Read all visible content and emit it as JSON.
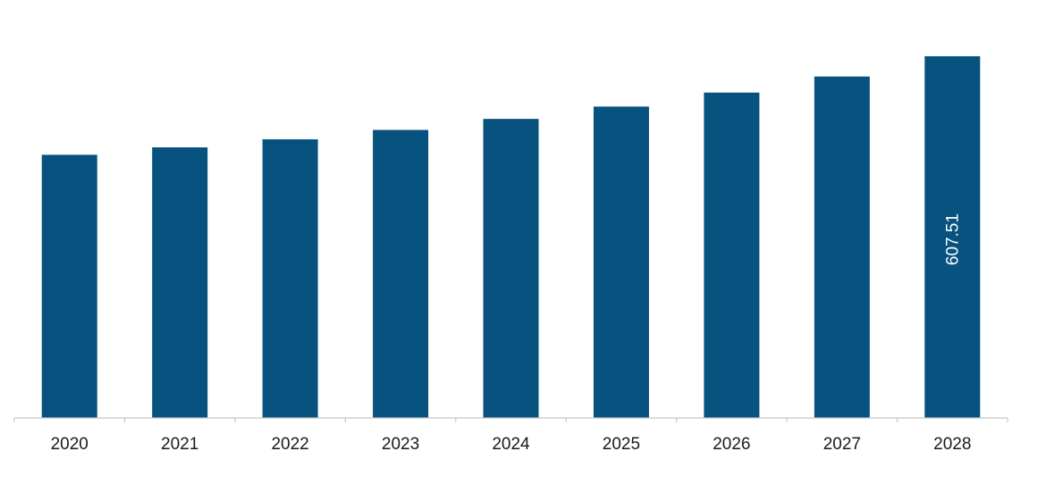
{
  "chart_data": {
    "type": "bar",
    "categories": [
      "2020",
      "2021",
      "2022",
      "2023",
      "2024",
      "2025",
      "2026",
      "2027",
      "2028"
    ],
    "series": [
      {
        "values": [
          442.0,
          454.5,
          468.0,
          483.8,
          502.3,
          523.0,
          546.5,
          573.5,
          607.51
        ],
        "data_labels": [
          "",
          "",
          "",
          "",
          "",
          "",
          "",
          "",
          "607.51"
        ]
      }
    ],
    "ylim": [
      0,
      607.51
    ],
    "grid": false,
    "legend": "none",
    "colors": {
      "bar": "#08527f",
      "axis": "#c8c8c8",
      "tick_text": "#1a1a1a",
      "data_label_text": "#ffffff"
    }
  }
}
